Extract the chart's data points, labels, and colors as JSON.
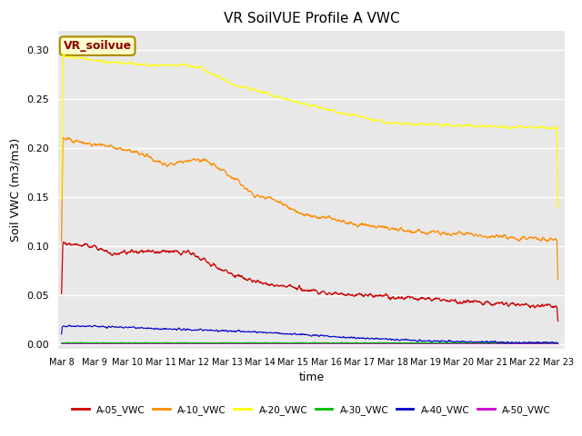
{
  "title": "VR SoilVUE Profile A VWC",
  "xlabel": "time",
  "ylabel": "Soil VWC (m3/m3)",
  "ylim": [
    -0.005,
    0.32
  ],
  "date_labels": [
    "Mar 8",
    "Mar 9",
    "Mar 10",
    "Mar 11",
    "Mar 12",
    "Mar 13",
    "Mar 14",
    "Mar 15",
    "Mar 16",
    "Mar 17",
    "Mar 18",
    "Mar 19",
    "Mar 20",
    "Mar 21",
    "Mar 22",
    "Mar 23"
  ],
  "legend_label": "VR_soilvue",
  "series": {
    "A-05_VWC": {
      "color": "#cc0000",
      "label": "A-05_VWC"
    },
    "A-10_VWC": {
      "color": "#ff8c00",
      "label": "A-10_VWC"
    },
    "A-20_VWC": {
      "color": "#ffff00",
      "label": "A-20_VWC"
    },
    "A-30_VWC": {
      "color": "#00bb00",
      "label": "A-30_VWC"
    },
    "A-40_VWC": {
      "color": "#0000cc",
      "label": "A-40_VWC"
    },
    "A-50_VWC": {
      "color": "#cc00cc",
      "label": "A-50_VWC"
    }
  },
  "bg_color": "#e8e8e8",
  "fig_color": "#ffffff",
  "yticks": [
    0.0,
    0.05,
    0.1,
    0.15,
    0.2,
    0.25,
    0.3
  ]
}
